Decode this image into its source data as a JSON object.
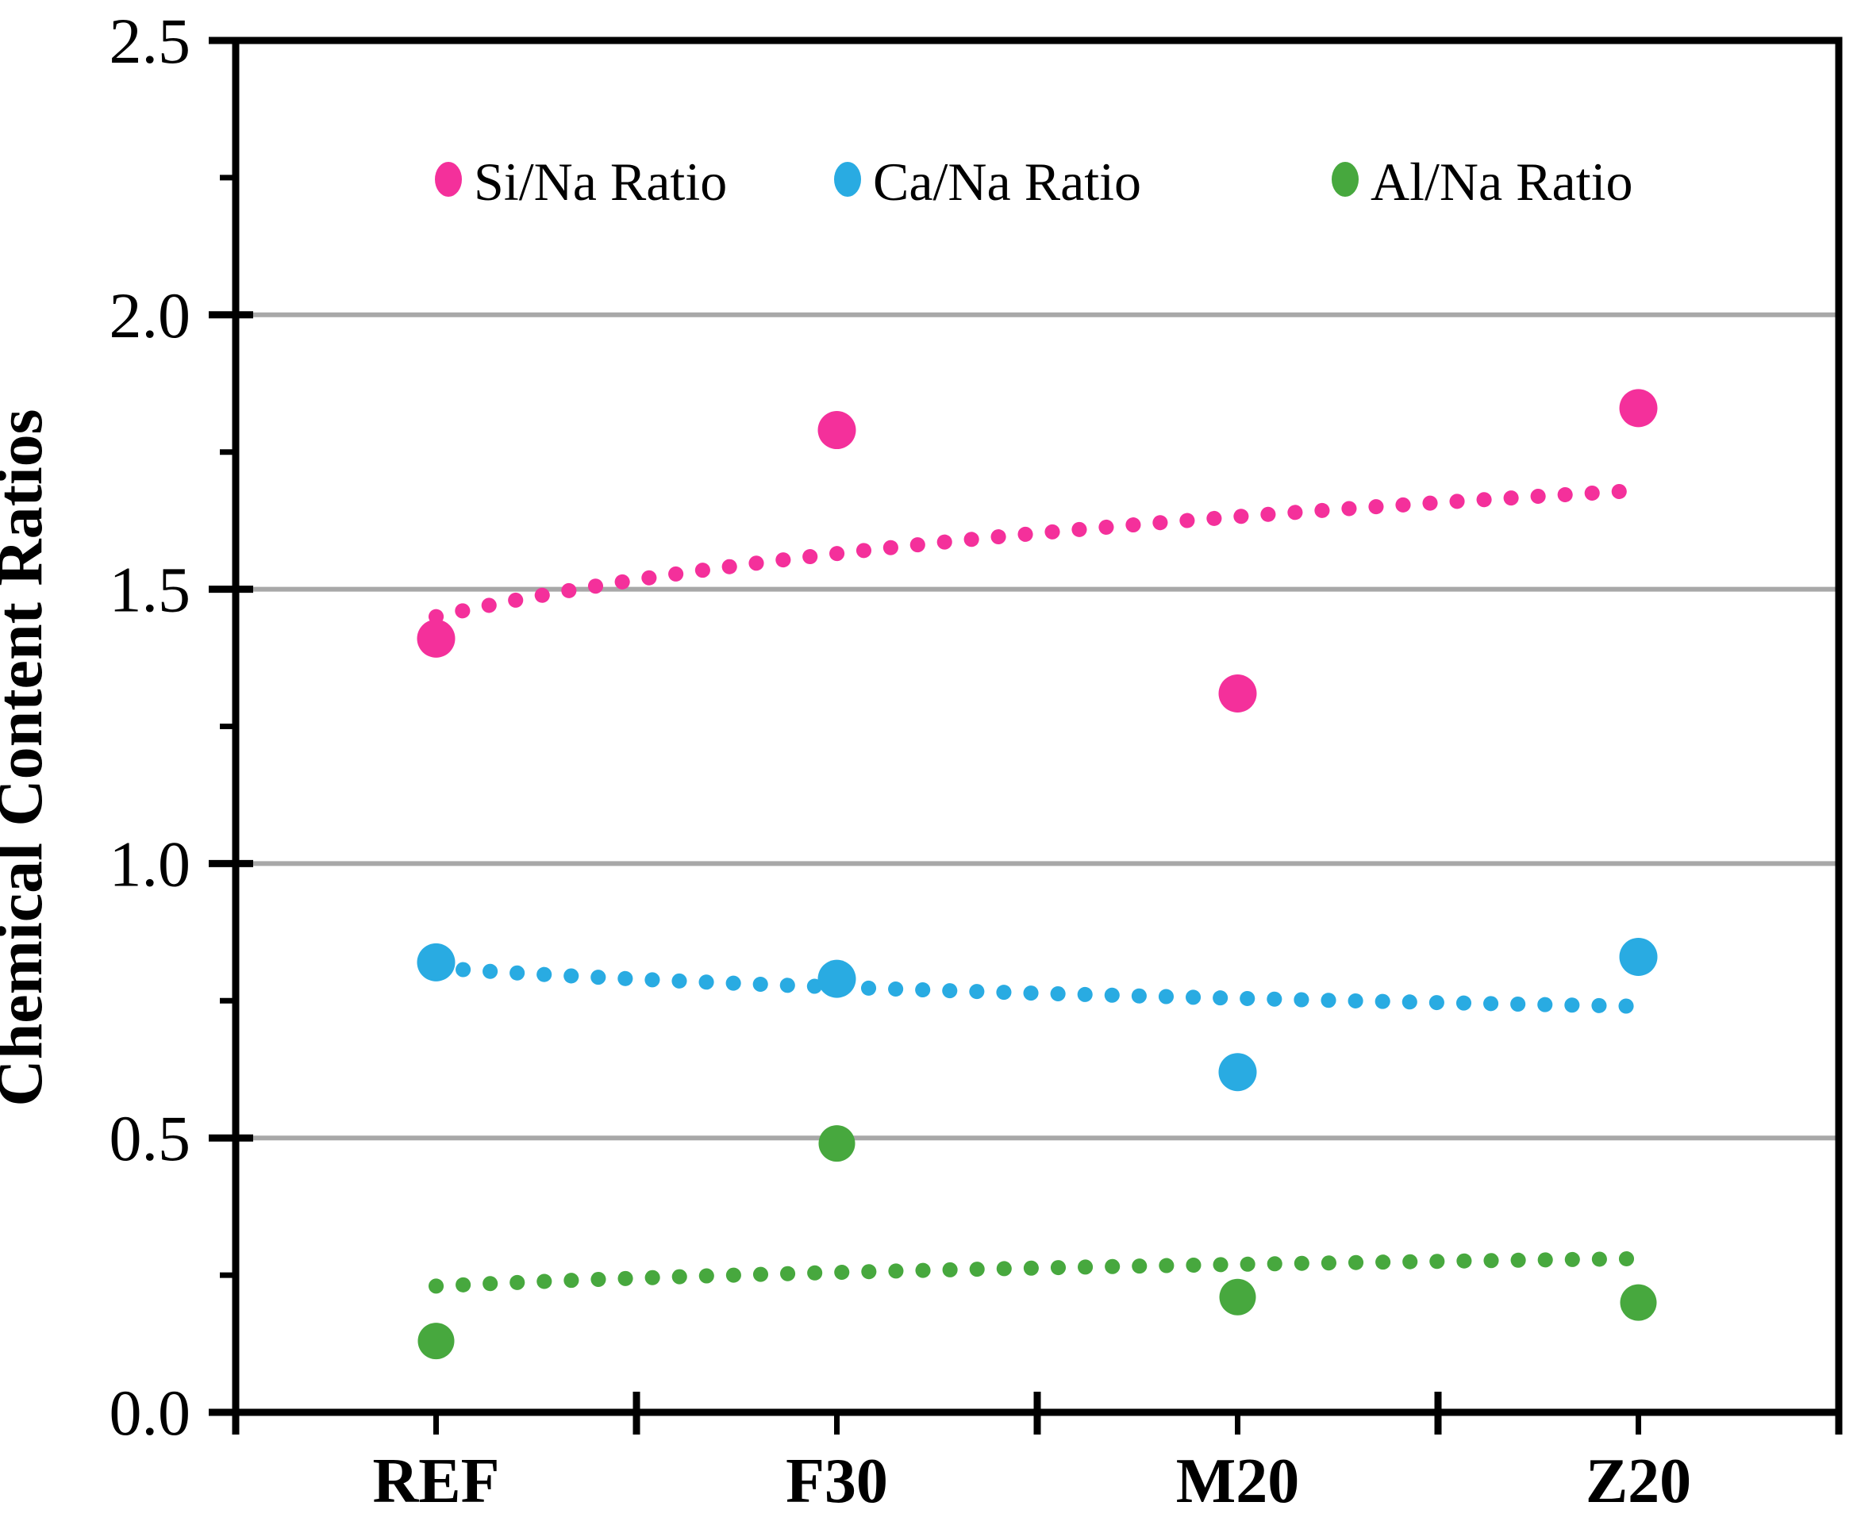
{
  "figure": {
    "background": "#FFFFFF"
  },
  "chart_data": {
    "type": "scatter",
    "title": "",
    "xlabel": "",
    "ylabel": "Chemical Content Ratios",
    "categories": [
      "REF",
      "F30",
      "M20",
      "Z20"
    ],
    "ylim": [
      0.0,
      2.5
    ],
    "ytick_step": 0.5,
    "ytick_labels": [
      "0.0",
      "0.5",
      "1.0",
      "1.5",
      "2.0",
      "2.5"
    ],
    "minor_ytick_step": 0.25,
    "grid": true,
    "gridline_values": [
      0.5,
      1.0,
      1.5,
      2.0
    ],
    "legend_position": "top-inside",
    "series": [
      {
        "name": "Si/Na Ratio",
        "color": "#F4309B",
        "values": [
          1.41,
          1.79,
          1.31,
          1.83
        ],
        "trend": {
          "style": "dotted",
          "shape": "logarithmic",
          "values_at_categories": [
            1.45,
            1.57,
            1.63,
            1.68
          ]
        }
      },
      {
        "name": "Ca/Na Ratio",
        "color": "#29ABE2",
        "values": [
          0.82,
          0.79,
          0.62,
          0.83
        ],
        "trend": {
          "style": "dotted",
          "shape": "logarithmic",
          "values_at_categories": [
            0.81,
            0.78,
            0.76,
            0.74
          ]
        }
      },
      {
        "name": "Al/Na Ratio",
        "color": "#47A83E",
        "values": [
          0.13,
          0.49,
          0.21,
          0.2
        ],
        "trend": {
          "style": "dotted",
          "shape": "logarithmic",
          "values_at_categories": [
            0.23,
            0.26,
            0.27,
            0.28
          ]
        }
      }
    ],
    "colors": {
      "axis": "#000000",
      "gridline": "#A8A8A8",
      "text": "#000000",
      "background": "#FFFFFF"
    }
  }
}
